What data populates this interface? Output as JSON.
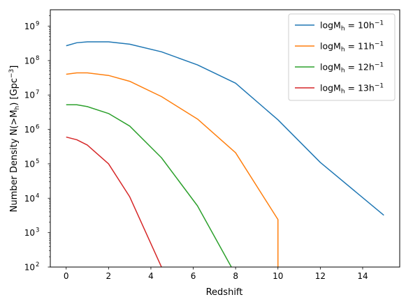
{
  "chart_data": {
    "type": "line",
    "title": "",
    "xlabel": "Redshift",
    "ylabel": "Number Density N(>M",
    "ylabel_sub": "h",
    "ylabel_unit": ") [Gpc",
    "ylabel_sup": "−3",
    "ylabel_end": "]",
    "x_scale": "linear",
    "y_scale": "log",
    "xlim": [
      -0.75,
      15.75
    ],
    "ylim": [
      100,
      3000000000
    ],
    "x_ticks": [
      {
        "value": 0,
        "label": "0"
      },
      {
        "value": 2,
        "label": "2"
      },
      {
        "value": 4,
        "label": "4"
      },
      {
        "value": 6,
        "label": "6"
      },
      {
        "value": 8,
        "label": "8"
      },
      {
        "value": 10,
        "label": "10"
      },
      {
        "value": 12,
        "label": "12"
      },
      {
        "value": 14,
        "label": "14"
      }
    ],
    "y_ticks": [
      {
        "exp": 2,
        "base": "10",
        "power": "2"
      },
      {
        "exp": 3,
        "base": "10",
        "power": "3"
      },
      {
        "exp": 4,
        "base": "10",
        "power": "4"
      },
      {
        "exp": 5,
        "base": "10",
        "power": "5"
      },
      {
        "exp": 6,
        "base": "10",
        "power": "6"
      },
      {
        "exp": 7,
        "base": "10",
        "power": "7"
      },
      {
        "exp": 8,
        "base": "10",
        "power": "8"
      },
      {
        "exp": 9,
        "base": "10",
        "power": "9"
      }
    ],
    "grid": false,
    "legend_position": "top-right",
    "series": [
      {
        "name": "logM_h = 10h^-1",
        "legend_main": "logM",
        "legend_sub": "h",
        "legend_eq": " = 10h",
        "legend_sup": "−1",
        "color": "#1f77b4",
        "x": [
          0,
          0.5,
          1,
          1.5,
          2,
          3,
          4.5,
          6.2,
          8,
          10,
          12,
          15
        ],
        "y": [
          270000000,
          330000000,
          350000000,
          350000000,
          350000000,
          300000000,
          180000000,
          75000000,
          22000000,
          1900000,
          110000,
          3200
        ]
      },
      {
        "name": "logM_h = 11h^-1",
        "legend_main": "logM",
        "legend_sub": "h",
        "legend_eq": " = 11h",
        "legend_sup": "−1",
        "color": "#ff7f0e",
        "x": [
          0,
          0.5,
          1,
          2,
          3,
          4.5,
          6.2,
          8,
          10,
          10,
          10
        ],
        "y": [
          40000000,
          44000000,
          44000000,
          37000000,
          25000000,
          9000000,
          2000000,
          210000,
          2400,
          1000,
          100
        ]
      },
      {
        "name": "logM_h = 12h^-1",
        "legend_main": "logM",
        "legend_sub": "h",
        "legend_eq": " = 12h",
        "legend_sup": "−1",
        "color": "#2ca02c",
        "x": [
          0,
          0.5,
          1,
          2,
          3,
          4.5,
          6.2,
          7.8
        ],
        "y": [
          5200000,
          5200000,
          4600000,
          2900000,
          1250000,
          150000,
          6000,
          100
        ]
      },
      {
        "name": "logM_h = 13h^-1",
        "legend_main": "logM",
        "legend_sub": "h",
        "legend_eq": " = 13h",
        "legend_sup": "−1",
        "color": "#d62728",
        "x": [
          0,
          0.5,
          1,
          2,
          3,
          4.5
        ],
        "y": [
          600000,
          500000,
          350000,
          100000,
          11000,
          100
        ]
      }
    ]
  }
}
